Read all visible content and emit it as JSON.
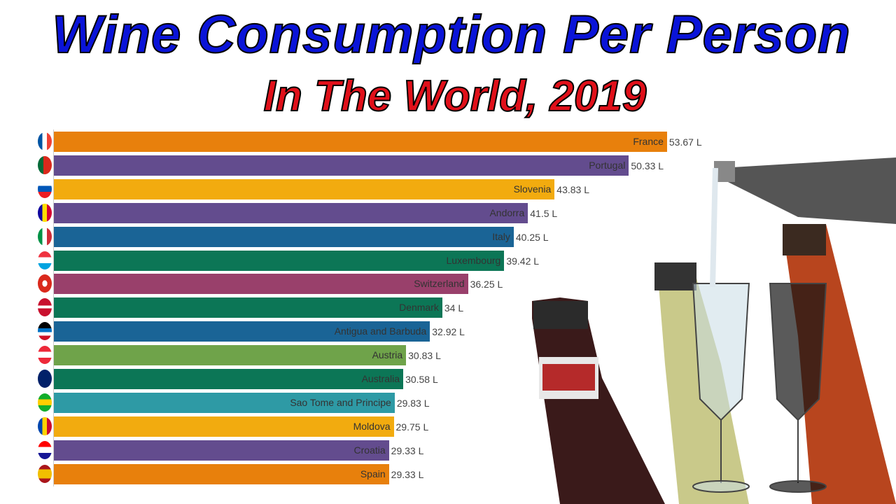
{
  "title": "Wine Consumption Per Person",
  "subtitle": "In The World, 2019",
  "chart_data": {
    "type": "bar",
    "orientation": "horizontal",
    "title": "Wine Consumption Per Person In The World, 2019",
    "unit": "L",
    "categories": [
      "France",
      "Portugal",
      "Slovenia",
      "Andorra",
      "Italy",
      "Luxembourg",
      "Switzerland",
      "Denmark",
      "Antigua and Barbuda",
      "Austria",
      "Australia",
      "Sao Tome and Principe",
      "Moldova",
      "Croatia",
      "Spain"
    ],
    "values": [
      53.67,
      50.33,
      43.83,
      41.5,
      40.25,
      39.42,
      36.25,
      34,
      32.92,
      30.83,
      30.58,
      29.83,
      29.75,
      29.33,
      29.33
    ],
    "value_labels": [
      "53.67 L",
      "50.33 L",
      "43.83 L",
      "41.5 L",
      "40.25 L",
      "39.42 L",
      "36.25 L",
      "34 L",
      "32.92 L",
      "30.83 L",
      "30.58 L",
      "29.83 L",
      "29.75 L",
      "29.33 L",
      "29.33 L"
    ],
    "colors": [
      "#e8800c",
      "#634c8e",
      "#f2ab0f",
      "#634c8e",
      "#1a6496",
      "#0c7656",
      "#99406b",
      "#0c7656",
      "#1a6496",
      "#6fa34a",
      "#0c7656",
      "#2e9aa5",
      "#f2ab0f",
      "#634c8e",
      "#e8800c"
    ],
    "flags": [
      "linear-gradient(90deg,#0055a4 33%,#fff 33% 66%,#ef4135 66%)",
      "linear-gradient(90deg,#046a38 40%,#da291c 40%)",
      "linear-gradient(#fff 33%,#0057b8 33% 66%,#ed1c24 66%)",
      "linear-gradient(90deg,#10069f 33%,#fedd00 33% 66%,#d50032 66%)",
      "linear-gradient(90deg,#009246 33%,#fff 33% 66%,#ce2b37 66%)",
      "linear-gradient(#ef3340 33%,#fff 33% 66%,#00a3e0 66%)",
      "radial-gradient(#fff 25%,#da291c 26%)",
      "linear-gradient(#c8102e 40%,#fff 40% 55%,#c8102e 55%)",
      "linear-gradient(#000 35%,#0072c6 35% 55%,#fff 55% 75%,#ce1126 75%)",
      "linear-gradient(#ed2939 33%,#fff 33% 66%,#ed2939 66%)",
      "linear-gradient(#012169 100%,#012169)",
      "linear-gradient(#12ad2b 33%,#ffce00 33% 66%,#12ad2b 66%)",
      "linear-gradient(90deg,#0046ae 33%,#ffd200 33% 66%,#cc092f 66%)",
      "linear-gradient(#ff0000 33%,#fff 33% 66%,#171796 66%)",
      "linear-gradient(#aa151b 25%,#f1bf00 25% 75%,#aa151b 75%)"
    ],
    "xlim": [
      0,
      55
    ]
  }
}
